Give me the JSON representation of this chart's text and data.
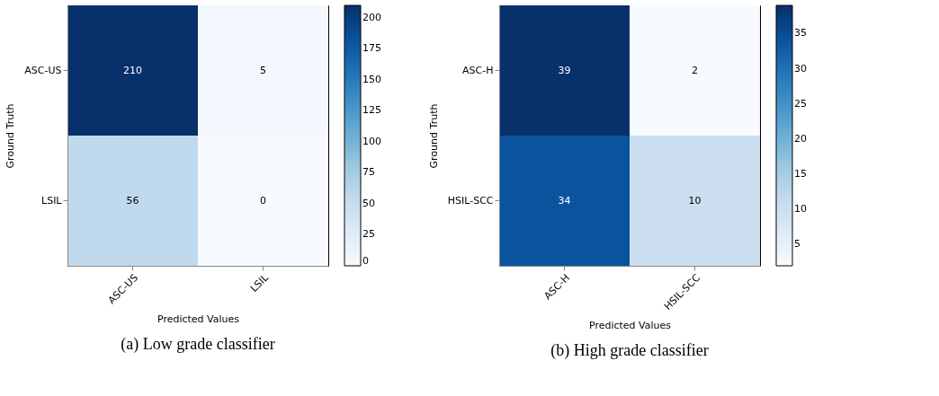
{
  "chart_data": [
    {
      "type": "heatmap",
      "title": "(a) Low grade classifier",
      "xlabel": "Predicted Values",
      "ylabel": "Ground Truth",
      "categories": [
        "ASC-US",
        "LSIL"
      ],
      "y_categories": [
        "ASC-US",
        "LSIL"
      ],
      "cells": [
        [
          210,
          5
        ],
        [
          56,
          0
        ]
      ],
      "data_labels": true,
      "clim": [
        0,
        210
      ],
      "cticks": [
        0,
        25,
        50,
        75,
        100,
        125,
        150,
        175,
        200
      ]
    },
    {
      "type": "heatmap",
      "title": "(b) High grade classifier",
      "xlabel": "Predicted Values",
      "ylabel": "Ground Truth",
      "categories": [
        "ASC-H",
        "HSIL-SCC"
      ],
      "y_categories": [
        "ASC-H",
        "HSIL-SCC"
      ],
      "cells": [
        [
          39,
          2
        ],
        [
          34,
          10
        ]
      ],
      "data_labels": true,
      "clim": [
        2,
        39
      ],
      "cticks": [
        5,
        10,
        15,
        20,
        25,
        30,
        35
      ]
    }
  ]
}
